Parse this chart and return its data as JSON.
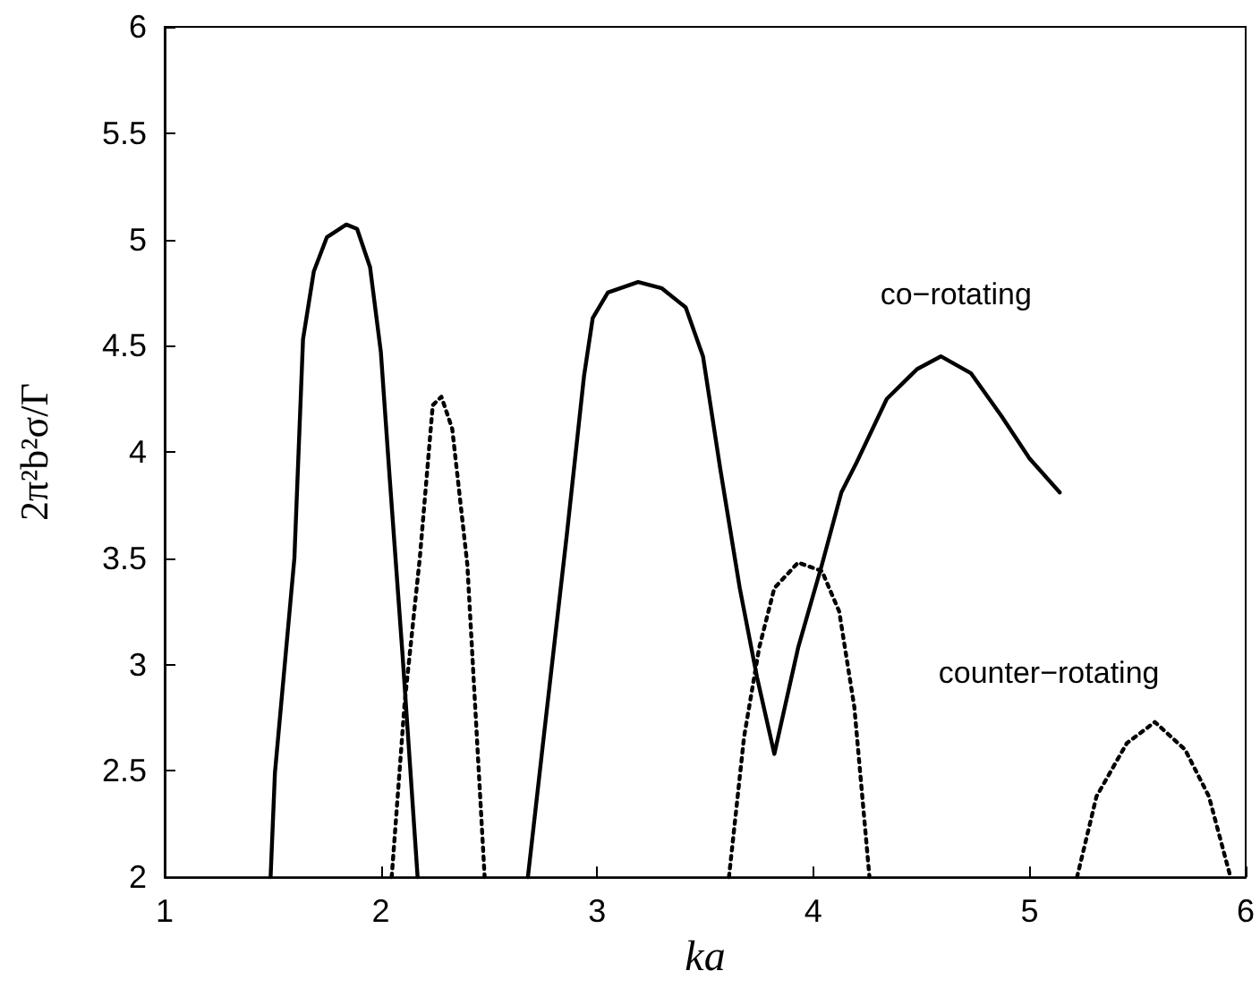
{
  "chart_data": {
    "type": "line",
    "xlabel": "ka",
    "ylabel": "2π²b²σ/Γ",
    "xlim": [
      1,
      6
    ],
    "xticks": [
      1,
      2,
      3,
      4,
      5,
      6
    ],
    "ylim": [
      2,
      6
    ],
    "yticks": [
      2,
      2.5,
      3,
      3.5,
      4,
      4.5,
      5,
      5.5,
      6
    ],
    "grid": false,
    "legend": false,
    "marker": "none",
    "series": [
      {
        "name": "co−rotating",
        "color": "#000000",
        "line_style": "solid",
        "x": [
          1.49,
          1.51,
          1.6,
          1.64,
          1.69,
          1.75,
          1.84,
          1.89,
          1.95,
          2.0,
          2.04,
          2.1,
          2.17,
          null,
          2.68,
          2.75,
          2.86,
          2.94,
          2.98,
          3.05,
          3.19,
          3.3,
          3.41,
          3.49,
          3.57,
          3.66,
          3.74,
          3.82,
          3.93,
          4.04,
          4.13,
          4.2,
          4.34,
          4.48,
          4.59,
          4.73,
          4.87,
          5.0,
          5.14
        ],
        "values": [
          2,
          2.49,
          3.5,
          4.53,
          4.85,
          5.01,
          5.07,
          5.05,
          4.87,
          4.47,
          3.89,
          3.05,
          2,
          null,
          2,
          2.63,
          3.61,
          4.36,
          4.63,
          4.75,
          4.8,
          4.77,
          4.68,
          4.45,
          3.92,
          3.36,
          2.94,
          2.58,
          3.08,
          3.47,
          3.81,
          3.95,
          4.25,
          4.39,
          4.45,
          4.37,
          4.17,
          3.97,
          3.81
        ]
      },
      {
        "name": "counter−rotating",
        "color": "#000000",
        "line_style": "dotted",
        "x": [
          2.05,
          2.11,
          2.18,
          2.24,
          2.28,
          2.33,
          2.4,
          2.48,
          null,
          3.61,
          3.68,
          3.75,
          3.82,
          3.93,
          4.04,
          4.12,
          4.19,
          4.26,
          null,
          5.22,
          5.31,
          5.45,
          5.58,
          5.72,
          5.83,
          5.93
        ],
        "values": [
          2,
          2.82,
          3.5,
          4.22,
          4.26,
          4.11,
          3.47,
          2,
          null,
          2,
          2.66,
          3.08,
          3.36,
          3.48,
          3.44,
          3.25,
          2.8,
          2,
          null,
          2,
          2.38,
          2.63,
          2.73,
          2.6,
          2.38,
          2
        ]
      }
    ]
  }
}
